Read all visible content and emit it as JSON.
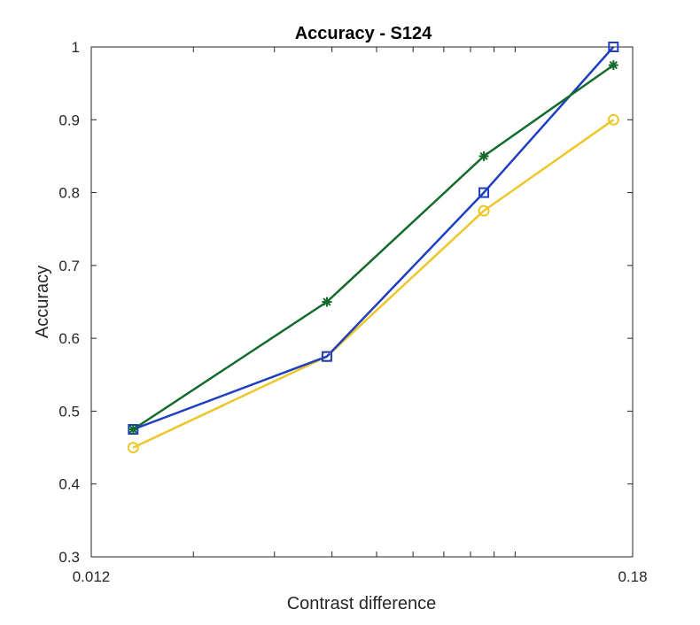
{
  "chart_data": {
    "type": "line",
    "title": "Accuracy - S124",
    "xlabel": "Contrast difference",
    "ylabel": "Accuracy",
    "x_scale": "log",
    "xlim": [
      0.012,
      0.18
    ],
    "ylim": [
      0.3,
      1.0
    ],
    "x_tick_labels": [
      "0.012",
      "0.18"
    ],
    "y_tick_labels": [
      "0.3",
      "0.4",
      "0.5",
      "0.6",
      "0.7",
      "0.8",
      "0.9",
      "1"
    ],
    "y_ticks": [
      0.3,
      0.4,
      0.5,
      0.6,
      0.7,
      0.8,
      0.9,
      1.0
    ],
    "grid": false,
    "legend": "none",
    "x": [
      0.0148,
      0.039,
      0.0855,
      0.1635
    ],
    "series": [
      {
        "color": "#EDC72A",
        "marker": "circle",
        "values": [
          0.45,
          0.575,
          0.775,
          0.9
        ]
      },
      {
        "color": "#1F3EC0",
        "marker": "square",
        "values": [
          0.475,
          0.575,
          0.8,
          1.0
        ]
      },
      {
        "color": "#136B2B",
        "marker": "asterisk",
        "values": [
          0.475,
          0.65,
          0.85,
          0.975
        ]
      }
    ]
  }
}
